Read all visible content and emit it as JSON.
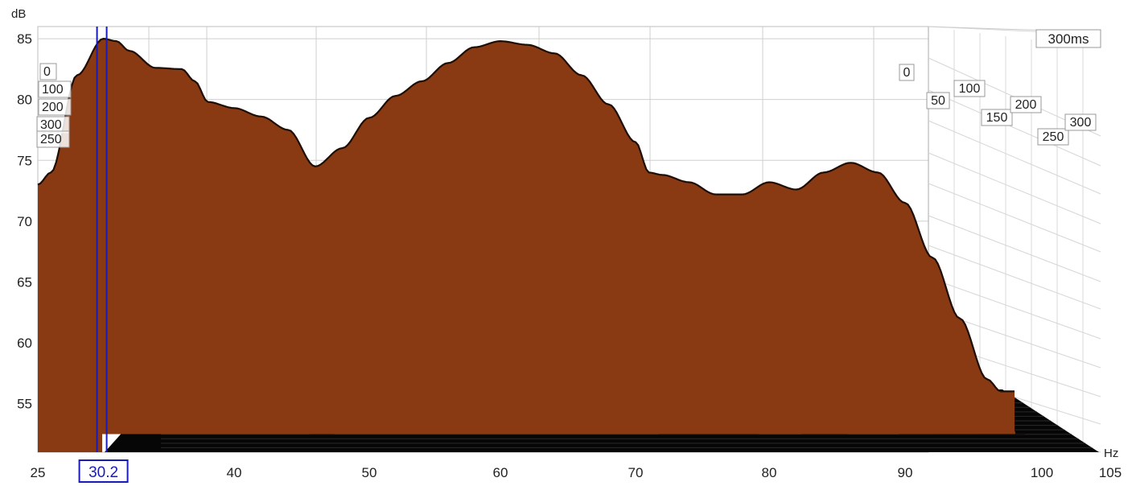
{
  "chart_data": {
    "type": "waterfall",
    "title": "",
    "xlabel": "Hz",
    "ylabel": "dB",
    "xlim": [
      25,
      105
    ],
    "ylim": [
      51,
      86
    ],
    "x_ticks": [
      "25",
      "40",
      "50",
      "60",
      "70",
      "80",
      "90",
      "100",
      "105"
    ],
    "y_ticks": [
      "85",
      "80",
      "75",
      "70",
      "65",
      "60",
      "55"
    ],
    "time_axis_label": "300ms",
    "time_ticks_right": [
      "0",
      "50",
      "100",
      "150",
      "200",
      "250",
      "300"
    ],
    "time_ticks_left": [
      "0",
      "100",
      "200",
      "300",
      "250"
    ],
    "cursor": {
      "frequency": 30.2,
      "label": "30.2"
    },
    "slices_ms": [
      0,
      20,
      40,
      60,
      80,
      100,
      120,
      140,
      160,
      180,
      200,
      220,
      240,
      260,
      280,
      300
    ],
    "front_response": {
      "x": [
        25,
        26,
        28,
        30,
        31,
        32,
        34,
        36,
        37,
        38,
        40,
        42,
        44,
        46,
        48,
        50,
        52,
        54,
        56,
        58,
        60,
        62,
        64,
        66,
        68,
        70,
        71,
        72,
        74,
        76,
        78,
        80,
        82,
        84,
        86,
        88,
        90,
        92,
        94,
        96,
        97
      ],
      "y": [
        73,
        74,
        82,
        85,
        84.8,
        84,
        82.6,
        82.5,
        81.5,
        79.8,
        79.3,
        78.6,
        77.5,
        74.5,
        76,
        78.5,
        80.3,
        81.5,
        83,
        84.3,
        84.8,
        84.5,
        83.8,
        82,
        79.6,
        76.5,
        74,
        73.8,
        73.2,
        72.2,
        72.2,
        73.2,
        72.6,
        74,
        74.8,
        74,
        71.5,
        67,
        62,
        57,
        56
      ]
    },
    "colors": {
      "surface": "#8a3a12",
      "contour": "#1e0e06",
      "floor": "#060606",
      "cursor": "#1a1ab8",
      "grid": "#cfcfcf"
    }
  }
}
